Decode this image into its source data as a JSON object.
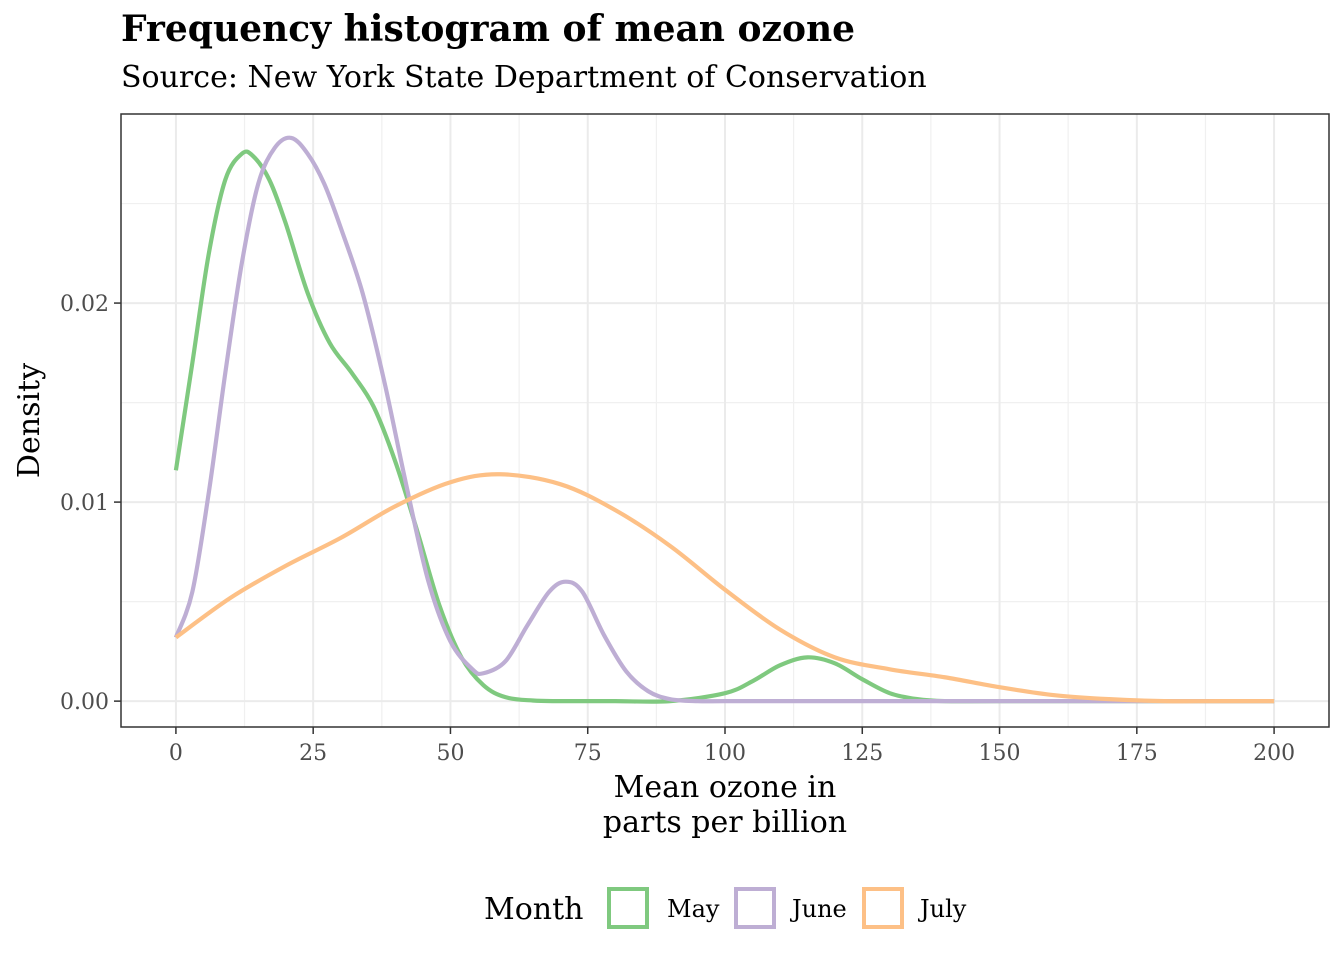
{
  "chart_data": {
    "type": "line",
    "title": "Frequency histogram of mean ozone",
    "subtitle": "Source: New York State Department of Conservation",
    "xlabel_lines": [
      "Mean ozone in",
      "parts per billion"
    ],
    "ylabel": "Density",
    "xlim": [
      -10,
      210
    ],
    "ylim": [
      -0.0013,
      0.0295
    ],
    "xticks": [
      0,
      25,
      50,
      75,
      100,
      125,
      150,
      175,
      200
    ],
    "xtick_labels": [
      "0",
      "25",
      "50",
      "75",
      "100",
      "125",
      "150",
      "175",
      "200"
    ],
    "yticks": [
      0,
      0.01,
      0.02
    ],
    "ytick_labels": [
      "0.00",
      "0.01",
      "0.02"
    ],
    "grid": true,
    "legend": {
      "title": "Month",
      "position": "bottom"
    },
    "series": [
      {
        "name": "May",
        "color": "#7fc97f",
        "x": [
          0,
          3,
          6,
          9,
          12,
          14,
          17,
          20,
          24,
          28,
          32,
          36,
          40,
          44,
          48,
          52,
          56,
          60,
          65,
          70,
          80,
          90,
          100,
          105,
          110,
          115,
          120,
          125,
          130,
          135,
          140,
          150,
          175,
          200
        ],
        "y": [
          0.0116,
          0.017,
          0.0225,
          0.0262,
          0.0275,
          0.0274,
          0.0262,
          0.024,
          0.0205,
          0.018,
          0.0165,
          0.0148,
          0.012,
          0.0085,
          0.0048,
          0.0022,
          0.0008,
          0.0002,
          3e-05,
          0.0,
          0.0,
          0.0,
          0.0004,
          0.001,
          0.0018,
          0.0022,
          0.0019,
          0.0011,
          0.0004,
          0.0001,
          0.0,
          0.0,
          0.0,
          0.0
        ]
      },
      {
        "name": "June",
        "color": "#beaed4",
        "x": [
          0,
          3,
          6,
          9,
          12,
          15,
          18,
          21,
          24,
          27,
          30,
          34,
          38,
          42,
          46,
          50,
          54,
          56,
          60,
          64,
          68,
          71,
          74,
          78,
          82,
          86,
          90,
          95,
          100,
          110,
          125,
          150,
          175,
          200
        ],
        "y": [
          0.0032,
          0.0055,
          0.0105,
          0.0165,
          0.022,
          0.026,
          0.0278,
          0.0283,
          0.0275,
          0.026,
          0.0238,
          0.0205,
          0.016,
          0.0108,
          0.006,
          0.003,
          0.0016,
          0.0014,
          0.002,
          0.0038,
          0.0055,
          0.006,
          0.0055,
          0.0033,
          0.0015,
          0.0005,
          0.0001,
          0.0,
          0.0,
          0.0,
          0.0,
          0.0,
          0.0,
          0.0
        ]
      },
      {
        "name": "July",
        "color": "#fdc086",
        "x": [
          0,
          10,
          20,
          30,
          40,
          50,
          59,
          70,
          80,
          90,
          100,
          110,
          120,
          130,
          140,
          150,
          160,
          170,
          180,
          190,
          200
        ],
        "y": [
          0.0032,
          0.0052,
          0.0068,
          0.0082,
          0.0098,
          0.011,
          0.0114,
          0.0109,
          0.0096,
          0.0078,
          0.0056,
          0.0036,
          0.0022,
          0.0016,
          0.0012,
          0.0007,
          0.0003,
          0.0001,
          0.0,
          0.0,
          0.0
        ]
      }
    ]
  }
}
